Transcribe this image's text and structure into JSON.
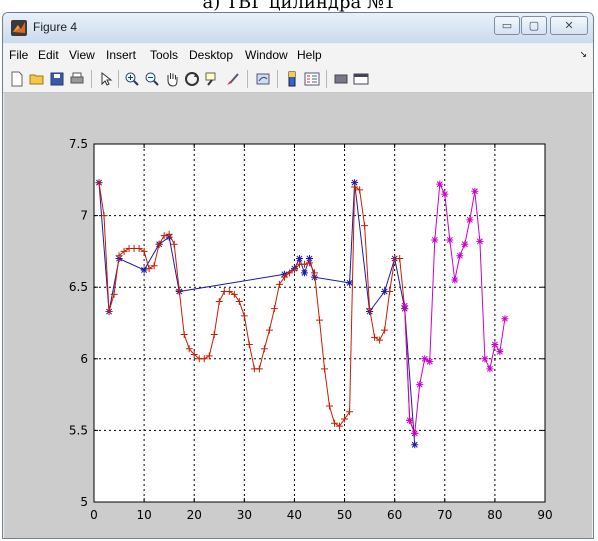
{
  "caption": "а) ТВГ цилиндра №1",
  "window": {
    "title": "Figure 4",
    "controls": {
      "minimize": "▭",
      "maximize": "▢",
      "close": "✕"
    }
  },
  "menubar": {
    "items": [
      "File",
      "Edit",
      "View",
      "Insert",
      "Tools",
      "Desktop",
      "Window",
      "Help"
    ],
    "overflow": "↘"
  },
  "toolbar": {
    "icons": [
      "new-figure-icon",
      "open-file-icon",
      "save-icon",
      "print-icon",
      "select-arrow-icon",
      "zoom-in-icon",
      "zoom-out-icon",
      "pan-hand-icon",
      "rotate-3d-icon",
      "data-cursor-icon",
      "brush-icon",
      "link-plot-icon",
      "colorbar-icon",
      "legend-icon",
      "hide-plot-tools-icon",
      "show-plot-tools-icon"
    ]
  },
  "colors": {
    "series_blue": "#1a1aa8",
    "series_red": "#c81e00",
    "series_magenta": "#cc00cc",
    "figure_bg": "#cccccc",
    "axes_bg": "#ffffff"
  },
  "chart_data": {
    "type": "line",
    "title": "",
    "xlabel": "",
    "ylabel": "",
    "xlim": [
      0,
      90
    ],
    "ylim": [
      5,
      7.5
    ],
    "xticks": [
      "0",
      "10",
      "20",
      "30",
      "40",
      "50",
      "60",
      "70",
      "80",
      "90"
    ],
    "yticks": [
      "5",
      "5.5",
      "6",
      "6.5",
      "7",
      "7.5"
    ],
    "grid": true,
    "series": [
      {
        "color": "#1a1aa8",
        "marker": "*",
        "x": [
          1,
          3,
          5,
          10,
          13,
          15,
          17,
          38,
          40,
          41,
          42,
          43,
          44,
          51,
          52,
          55,
          58,
          60,
          62,
          64
        ],
        "y": [
          7.23,
          6.33,
          6.7,
          6.62,
          6.8,
          6.85,
          6.47,
          6.59,
          6.63,
          6.7,
          6.6,
          6.7,
          6.57,
          6.53,
          7.23,
          6.33,
          6.47,
          6.7,
          6.35,
          5.4
        ]
      },
      {
        "color": "#c81e00",
        "marker": "+",
        "x": [
          1,
          2,
          3,
          4,
          5,
          6,
          7,
          8,
          9,
          10,
          11,
          12,
          13,
          14,
          15,
          16,
          17,
          18,
          19,
          20,
          21,
          22,
          23,
          24,
          25,
          26,
          27,
          28,
          29,
          30,
          31,
          32,
          33,
          34,
          35,
          36,
          37,
          38,
          39,
          40,
          41,
          42,
          43,
          44,
          45,
          46,
          47,
          48,
          49,
          50,
          51,
          52,
          53,
          54,
          55,
          56,
          57,
          58,
          59,
          60,
          61,
          62,
          63,
          64
        ],
        "y": [
          7.23,
          7.0,
          6.33,
          6.45,
          6.72,
          6.75,
          6.77,
          6.77,
          6.77,
          6.75,
          6.63,
          6.65,
          6.8,
          6.86,
          6.87,
          6.8,
          6.48,
          6.17,
          6.07,
          6.03,
          6.0,
          6.0,
          6.02,
          6.17,
          6.4,
          6.47,
          6.47,
          6.45,
          6.4,
          6.3,
          6.1,
          5.93,
          5.93,
          6.07,
          6.2,
          6.35,
          6.52,
          6.57,
          6.6,
          6.62,
          6.66,
          6.66,
          6.67,
          6.6,
          6.27,
          5.93,
          5.67,
          5.55,
          5.53,
          5.58,
          5.63,
          7.2,
          7.18,
          6.93,
          6.35,
          6.15,
          6.13,
          6.2,
          6.47,
          6.7,
          6.7,
          6.35,
          5.57,
          5.48
        ]
      },
      {
        "color": "#cc00cc",
        "marker": "*",
        "x": [
          62,
          63,
          64,
          65,
          66,
          67,
          68,
          69,
          70,
          71,
          72,
          73,
          74,
          75,
          76,
          77,
          78,
          79,
          80,
          81,
          82
        ],
        "y": [
          6.37,
          5.57,
          5.48,
          5.82,
          6.0,
          5.98,
          6.83,
          7.22,
          7.15,
          6.83,
          6.55,
          6.72,
          6.8,
          6.97,
          7.17,
          6.82,
          6.0,
          5.93,
          6.1,
          6.05,
          6.28
        ]
      }
    ]
  }
}
